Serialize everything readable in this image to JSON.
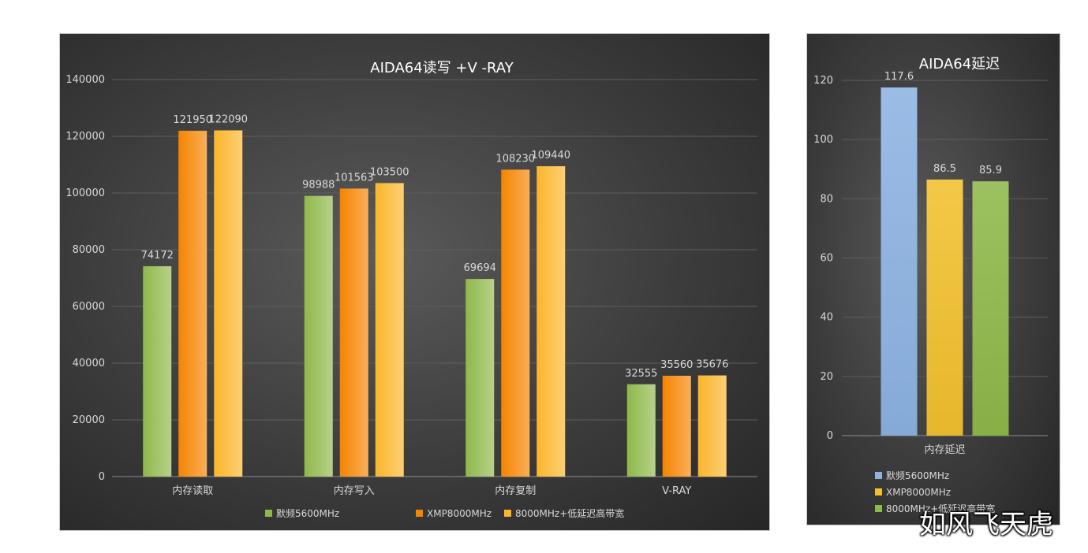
{
  "chart_data": [
    {
      "type": "bar",
      "title": "AIDA64读写  +V -RAY",
      "categories": [
        "内存读取",
        "内存写入",
        "内存复制",
        "V-RAY"
      ],
      "series": [
        {
          "name": "默频5600MHz",
          "values": [
            74172,
            98988,
            69694,
            32555
          ],
          "color": "#8fb84a"
        },
        {
          "name": "XMP8000MHz",
          "values": [
            121950,
            101563,
            108230,
            35560
          ],
          "color": "#f58400"
        },
        {
          "name": "8000MHz+低延迟高带宽",
          "values": [
            122090,
            103500,
            109440,
            35676
          ],
          "color": "#fbb52a"
        }
      ],
      "ylim": [
        0,
        140000
      ],
      "yticks": [
        0,
        20000,
        40000,
        60000,
        80000,
        100000,
        120000,
        140000
      ],
      "grid": true,
      "legend": "bottom"
    },
    {
      "type": "bar",
      "title": "AIDA64延迟",
      "categories": [
        "内存延迟"
      ],
      "series": [
        {
          "name": "默频5600MHz",
          "values": [
            117.6
          ],
          "color": "#8db3e2"
        },
        {
          "name": "XMP8000MHz",
          "values": [
            86.5
          ],
          "color": "#f2c12e"
        },
        {
          "name": "8000MHz+低延迟高带宽",
          "values": [
            85.9
          ],
          "color": "#8fb84a"
        }
      ],
      "ylim": [
        0,
        120
      ],
      "yticks": [
        0,
        20,
        40,
        60,
        80,
        100,
        120
      ],
      "grid": true,
      "legend": "bottom"
    }
  ],
  "watermark": "如风飞天虎"
}
